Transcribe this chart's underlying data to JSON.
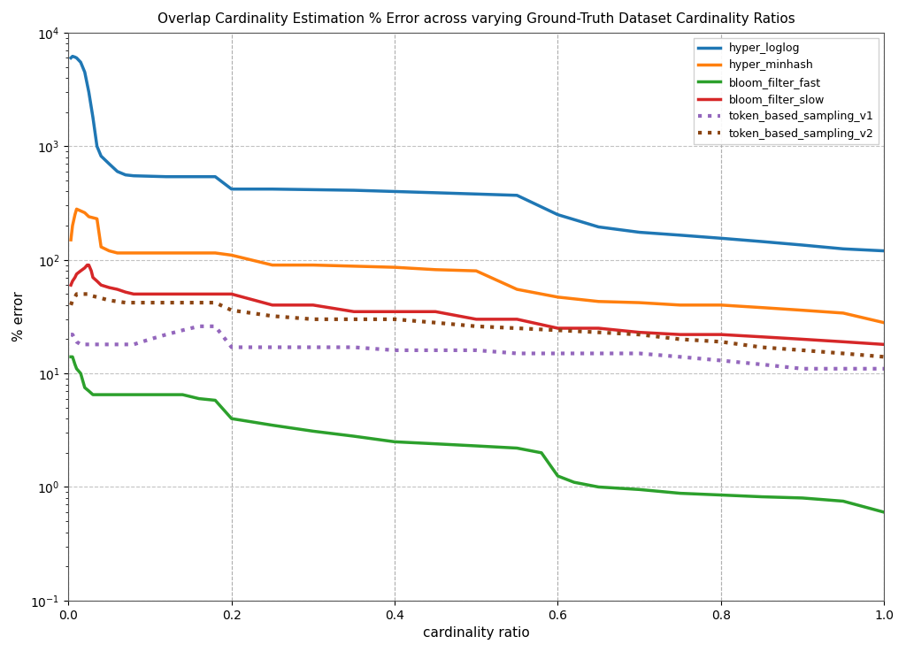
{
  "title": "Overlap Cardinality Estimation % Error across varying Ground-Truth Dataset Cardinality Ratios",
  "xlabel": "cardinality ratio",
  "ylabel": "% error",
  "ylim_min": 0.1,
  "ylim_max": 10000,
  "xlim_min": 0.0,
  "xlim_max": 1.0,
  "series": {
    "hyper_loglog": {
      "color": "#1f77b4",
      "linestyle": "solid",
      "linewidth": 2.5,
      "x": [
        0.003,
        0.005,
        0.008,
        0.01,
        0.015,
        0.02,
        0.025,
        0.03,
        0.035,
        0.04,
        0.05,
        0.06,
        0.07,
        0.08,
        0.1,
        0.12,
        0.14,
        0.16,
        0.18,
        0.2,
        0.25,
        0.3,
        0.35,
        0.4,
        0.45,
        0.5,
        0.55,
        0.6,
        0.65,
        0.7,
        0.75,
        0.8,
        0.85,
        0.9,
        0.95,
        1.0
      ],
      "y": [
        6000,
        6200,
        6100,
        6000,
        5500,
        4500,
        3000,
        1800,
        1000,
        820,
        700,
        600,
        560,
        550,
        545,
        540,
        540,
        540,
        540,
        420,
        420,
        415,
        410,
        400,
        390,
        380,
        370,
        250,
        195,
        175,
        165,
        155,
        145,
        135,
        125,
        120
      ]
    },
    "hyper_minhash": {
      "color": "#ff7f0e",
      "linestyle": "solid",
      "linewidth": 2.5,
      "x": [
        0.003,
        0.005,
        0.008,
        0.01,
        0.015,
        0.02,
        0.025,
        0.03,
        0.035,
        0.04,
        0.05,
        0.06,
        0.07,
        0.08,
        0.1,
        0.12,
        0.14,
        0.16,
        0.18,
        0.2,
        0.25,
        0.3,
        0.35,
        0.4,
        0.45,
        0.5,
        0.55,
        0.6,
        0.65,
        0.7,
        0.75,
        0.8,
        0.85,
        0.9,
        0.95,
        1.0
      ],
      "y": [
        150,
        200,
        250,
        280,
        270,
        260,
        240,
        235,
        230,
        130,
        120,
        115,
        115,
        115,
        115,
        115,
        115,
        115,
        115,
        110,
        90,
        90,
        88,
        86,
        82,
        80,
        55,
        47,
        43,
        42,
        40,
        40,
        38,
        36,
        34,
        28
      ]
    },
    "bloom_filter_fast": {
      "color": "#2ca02c",
      "linestyle": "solid",
      "linewidth": 2.5,
      "x": [
        0.003,
        0.005,
        0.008,
        0.01,
        0.015,
        0.02,
        0.025,
        0.03,
        0.04,
        0.05,
        0.06,
        0.07,
        0.08,
        0.1,
        0.12,
        0.14,
        0.16,
        0.18,
        0.2,
        0.25,
        0.3,
        0.35,
        0.4,
        0.45,
        0.5,
        0.55,
        0.58,
        0.6,
        0.62,
        0.65,
        0.7,
        0.75,
        0.8,
        0.85,
        0.9,
        0.95,
        1.0
      ],
      "y": [
        14,
        14,
        12,
        11,
        10,
        7.5,
        7.0,
        6.5,
        6.5,
        6.5,
        6.5,
        6.5,
        6.5,
        6.5,
        6.5,
        6.5,
        6.0,
        5.8,
        4.0,
        3.5,
        3.1,
        2.8,
        2.5,
        2.4,
        2.3,
        2.2,
        2.0,
        1.25,
        1.1,
        1.0,
        0.95,
        0.88,
        0.85,
        0.82,
        0.8,
        0.75,
        0.6
      ]
    },
    "bloom_filter_slow": {
      "color": "#d62728",
      "linestyle": "solid",
      "linewidth": 2.5,
      "x": [
        0.003,
        0.005,
        0.008,
        0.01,
        0.015,
        0.02,
        0.023,
        0.025,
        0.028,
        0.03,
        0.035,
        0.04,
        0.05,
        0.06,
        0.07,
        0.08,
        0.1,
        0.12,
        0.14,
        0.16,
        0.18,
        0.2,
        0.25,
        0.3,
        0.35,
        0.4,
        0.45,
        0.5,
        0.55,
        0.6,
        0.65,
        0.7,
        0.75,
        0.8,
        0.85,
        0.9,
        0.95,
        1.0
      ],
      "y": [
        60,
        65,
        70,
        75,
        80,
        85,
        90,
        90,
        80,
        70,
        65,
        60,
        57,
        55,
        52,
        50,
        50,
        50,
        50,
        50,
        50,
        50,
        40,
        40,
        35,
        35,
        35,
        30,
        30,
        25,
        25,
        23,
        22,
        22,
        21,
        20,
        19,
        18
      ]
    },
    "token_based_sampling_v1": {
      "color": "#9467bd",
      "linestyle": "dotted",
      "linewidth": 3.0,
      "x": [
        0.003,
        0.005,
        0.008,
        0.01,
        0.015,
        0.02,
        0.025,
        0.03,
        0.04,
        0.05,
        0.06,
        0.07,
        0.08,
        0.1,
        0.12,
        0.14,
        0.16,
        0.18,
        0.2,
        0.25,
        0.3,
        0.35,
        0.4,
        0.45,
        0.5,
        0.55,
        0.6,
        0.65,
        0.7,
        0.75,
        0.8,
        0.85,
        0.9,
        0.95,
        1.0
      ],
      "y": [
        22,
        22,
        20,
        19,
        18,
        18,
        18,
        18,
        18,
        18,
        18,
        18,
        18,
        20,
        22,
        24,
        26,
        26,
        17,
        17,
        17,
        17,
        16,
        16,
        16,
        15,
        15,
        15,
        15,
        14,
        13,
        12,
        11,
        11,
        11
      ]
    },
    "token_based_sampling_v2": {
      "color": "#8B4513",
      "linestyle": "dotted",
      "linewidth": 3.0,
      "x": [
        0.003,
        0.005,
        0.008,
        0.01,
        0.015,
        0.02,
        0.025,
        0.03,
        0.04,
        0.05,
        0.06,
        0.07,
        0.08,
        0.1,
        0.12,
        0.14,
        0.16,
        0.18,
        0.2,
        0.25,
        0.3,
        0.35,
        0.4,
        0.45,
        0.5,
        0.55,
        0.6,
        0.65,
        0.7,
        0.75,
        0.8,
        0.85,
        0.9,
        0.95,
        1.0
      ],
      "y": [
        40,
        44,
        47,
        50,
        50,
        50,
        50,
        48,
        46,
        44,
        43,
        42,
        42,
        42,
        42,
        42,
        42,
        42,
        36,
        32,
        30,
        30,
        30,
        28,
        26,
        25,
        24,
        23,
        22,
        20,
        19,
        17,
        16,
        15,
        14
      ]
    }
  },
  "xticks": [
    0.0,
    0.2,
    0.4,
    0.6,
    0.8,
    1.0
  ],
  "vlines": [
    0.0,
    0.2,
    0.4,
    0.6,
    0.8,
    1.0
  ],
  "grid_color": "#aaaaaa",
  "bg_color": "#ffffff",
  "fig_bg_color": "#ffffff",
  "legend_loc": "upper right",
  "title_fontsize": 11,
  "axis_label_fontsize": 11,
  "tick_labelsize": 10,
  "legend_fontsize": 9
}
